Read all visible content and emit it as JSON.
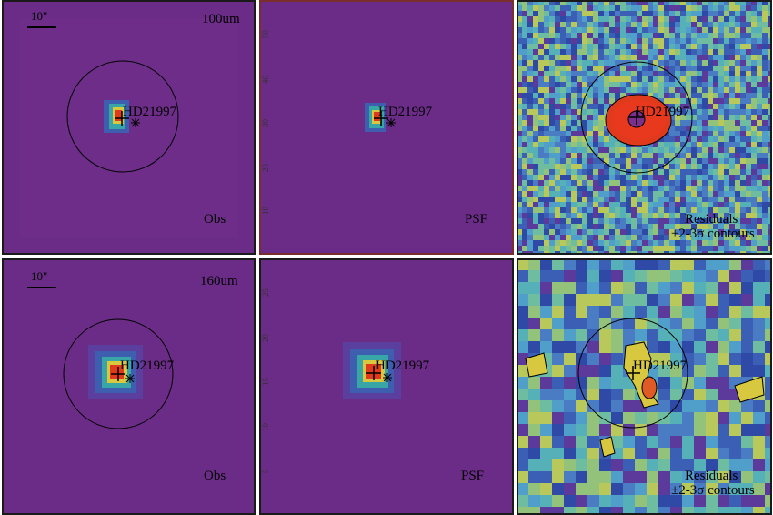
{
  "source_name": "HD21997",
  "scale_bar_label": "10\"",
  "rows": [
    {
      "band": "100um",
      "obs_label": "Obs",
      "psf_label": "PSF",
      "residual_label_1": "Residuals",
      "residual_label_2": "±2-3σ contours",
      "y_ticks": [
        "10",
        "20",
        "30",
        "40",
        "50"
      ]
    },
    {
      "band": "160um",
      "obs_label": "Obs",
      "psf_label": "PSF",
      "residual_label_1": "Residuals",
      "residual_label_2": "±2-3σ contours",
      "y_ticks": [
        "5",
        "10",
        "15",
        "20",
        "25"
      ]
    }
  ],
  "colors": {
    "background_purple": "#6a2b86",
    "peak": "#e03a1c",
    "ring": "#000000"
  },
  "icons": [
    "plus-marker-icon",
    "star-marker-icon"
  ]
}
